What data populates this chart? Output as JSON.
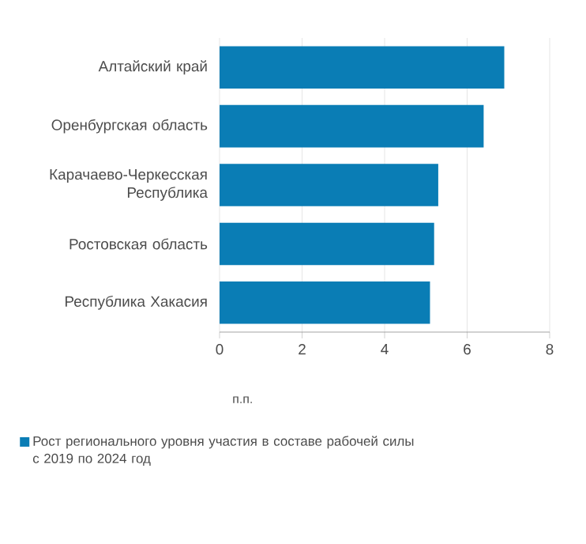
{
  "chart_data": {
    "type": "bar",
    "orientation": "horizontal",
    "categories": [
      "Алтайский край",
      "Оренбургская область",
      "Карачаево-Черкесская Республика",
      "Ростовская область",
      "Республика Хакасия"
    ],
    "series": [
      {
        "name": "Рост регионального  уровня участия в составе рабочей силы с 2019 по 2024 год",
        "color": "#0a7db5",
        "values": [
          6.9,
          6.4,
          5.3,
          5.2,
          5.1
        ]
      }
    ],
    "xlabel": "п.п.",
    "xlim": [
      0,
      8
    ],
    "xticks": [
      0,
      2,
      4,
      6,
      8
    ],
    "grid": "x",
    "legend": "bottom"
  }
}
